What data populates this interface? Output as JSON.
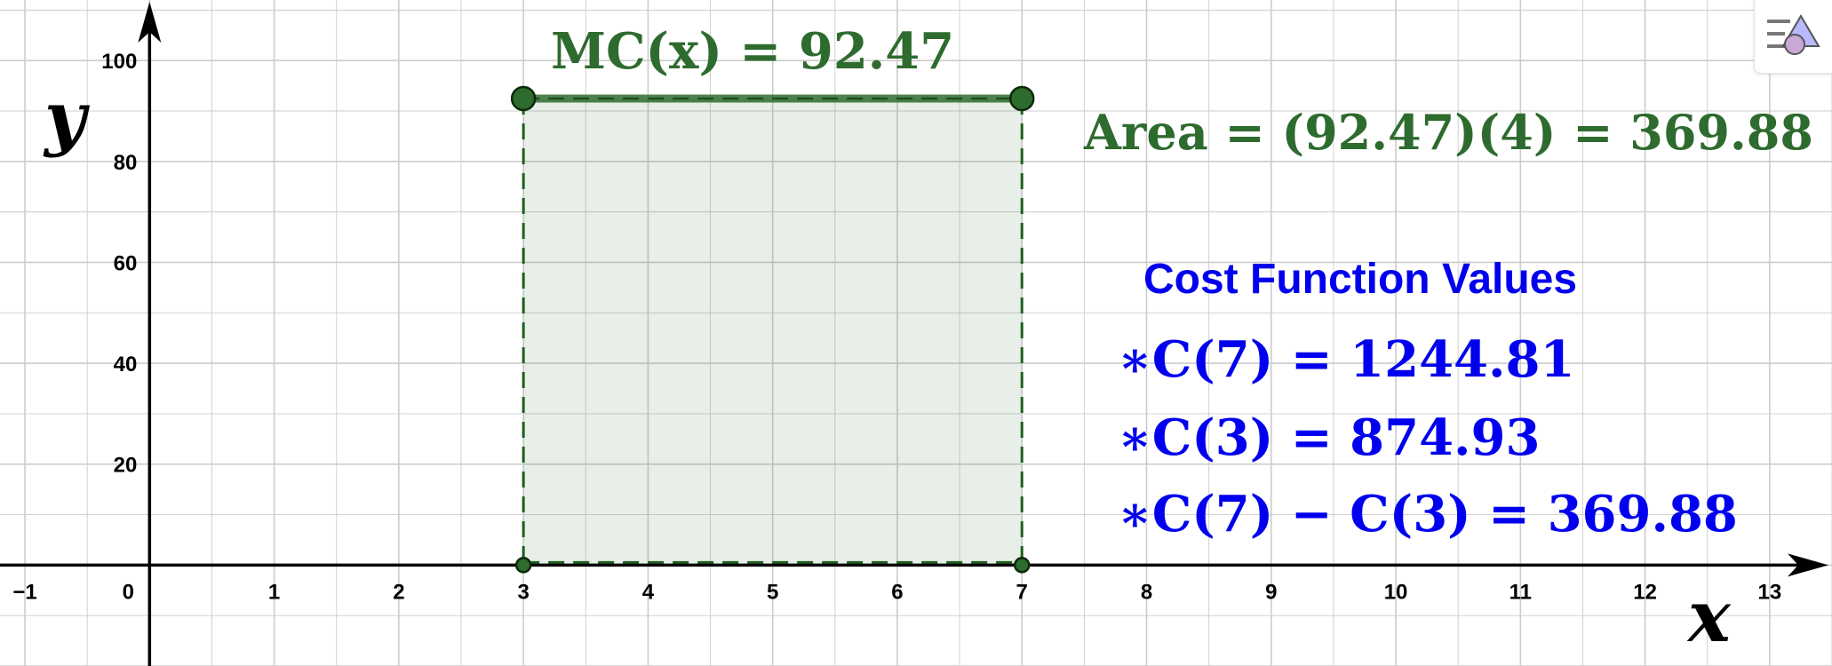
{
  "axes": {
    "x_label": "x",
    "y_label": "y",
    "x_ticks": [
      "−1",
      "0",
      "1",
      "2",
      "3",
      "4",
      "5",
      "6",
      "7",
      "8",
      "9",
      "10",
      "11",
      "12",
      "13"
    ],
    "y_ticks": [
      "20",
      "40",
      "60",
      "80",
      "100"
    ],
    "y_tick_values": [
      20,
      40,
      60,
      80,
      100
    ],
    "x_range": [
      -1.2,
      13.5
    ],
    "y_range": [
      -20,
      112
    ]
  },
  "rectangle": {
    "x_start": 3,
    "x_end": 7,
    "height": 92.47,
    "color": "#2e6b2e"
  },
  "labels": {
    "mc_label": "MC(x) = 92.47",
    "area_label": "Area = (92.47)(4) = 369.88",
    "cost_title": "Cost Function Values",
    "c7": "∗C(7) = 1244.81",
    "c3": "∗C(3) = 874.93",
    "diff": "∗C(7) − C(3) =  369.88"
  },
  "colors": {
    "green_text": "#2e6b2e",
    "blue_text": "#0000ee",
    "grid": "#cccccc",
    "axis": "#000000"
  },
  "toolbar": {
    "style_bar_icon": "style-bar-icon"
  }
}
